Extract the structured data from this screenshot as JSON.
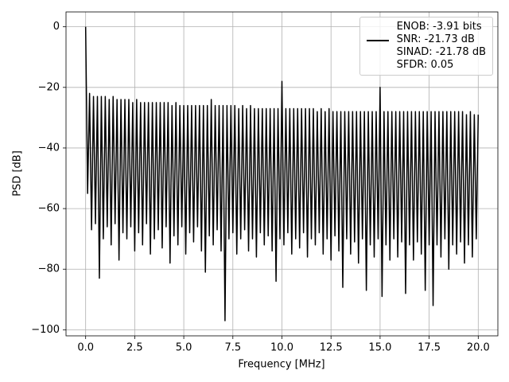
{
  "chart_data": {
    "type": "line",
    "xlabel": "Frequency [MHz]",
    "ylabel": "PSD [dB]",
    "x": [
      0,
      0.1,
      0.2,
      0.3,
      0.4,
      0.5,
      0.6,
      0.7,
      0.8,
      0.9,
      1,
      1.1,
      1.2,
      1.3,
      1.4,
      1.5,
      1.6,
      1.7,
      1.8,
      1.9,
      2,
      2.1,
      2.2,
      2.3,
      2.4,
      2.5,
      2.6,
      2.7,
      2.8,
      2.9,
      3,
      3.1,
      3.2,
      3.3,
      3.4,
      3.5,
      3.6,
      3.7,
      3.8,
      3.9,
      4,
      4.1,
      4.2,
      4.3,
      4.4,
      4.5,
      4.6,
      4.7,
      4.8,
      4.9,
      5,
      5.1,
      5.2,
      5.3,
      5.4,
      5.5,
      5.6,
      5.7,
      5.8,
      5.9,
      6,
      6.1,
      6.2,
      6.3,
      6.4,
      6.5,
      6.6,
      6.7,
      6.8,
      6.9,
      7,
      7.1,
      7.2,
      7.3,
      7.4,
      7.5,
      7.6,
      7.7,
      7.8,
      7.9,
      8,
      8.1,
      8.2,
      8.3,
      8.4,
      8.5,
      8.6,
      8.7,
      8.8,
      8.9,
      9,
      9.1,
      9.2,
      9.3,
      9.4,
      9.5,
      9.6,
      9.7,
      9.8,
      9.9,
      10,
      10.1,
      10.2,
      10.3,
      10.4,
      10.5,
      10.6,
      10.7,
      10.8,
      10.9,
      11,
      11.1,
      11.2,
      11.3,
      11.4,
      11.5,
      11.6,
      11.7,
      11.8,
      11.9,
      12,
      12.1,
      12.2,
      12.3,
      12.4,
      12.5,
      12.6,
      12.7,
      12.8,
      12.9,
      13,
      13.1,
      13.2,
      13.3,
      13.4,
      13.5,
      13.6,
      13.7,
      13.8,
      13.9,
      14,
      14.1,
      14.2,
      14.3,
      14.4,
      14.5,
      14.6,
      14.7,
      14.8,
      14.9,
      15,
      15.1,
      15.2,
      15.3,
      15.4,
      15.5,
      15.6,
      15.7,
      15.8,
      15.9,
      16,
      16.1,
      16.2,
      16.3,
      16.4,
      16.5,
      16.6,
      16.7,
      16.8,
      16.9,
      17,
      17.1,
      17.2,
      17.3,
      17.4,
      17.5,
      17.6,
      17.7,
      17.8,
      17.9,
      18,
      18.1,
      18.2,
      18.3,
      18.4,
      18.5,
      18.6,
      18.7,
      18.8,
      18.9,
      19,
      19.1,
      19.2,
      19.3,
      19.4,
      19.5,
      19.6,
      19.7,
      19.8,
      19.9,
      20
    ],
    "series": [
      {
        "name": "ENOB: -3.91 bits\nSNR: -21.73 dB\nSINAD: -21.78 dB\nSFDR: 0.05",
        "color": "#000000",
        "values": [
          0,
          -55,
          -22,
          -67,
          -23,
          -65,
          -23,
          -83,
          -23,
          -70,
          -23,
          -66,
          -24,
          -72,
          -23,
          -65,
          -24,
          -77,
          -24,
          -68,
          -24,
          -70,
          -24,
          -66,
          -25,
          -74,
          -24,
          -68,
          -25,
          -72,
          -25,
          -65,
          -25,
          -75,
          -25,
          -70,
          -25,
          -67,
          -25,
          -73,
          -25,
          -66,
          -25,
          -78,
          -26,
          -69,
          -25,
          -72,
          -26,
          -66,
          -26,
          -75,
          -26,
          -68,
          -26,
          -71,
          -26,
          -66,
          -26,
          -74,
          -26,
          -81,
          -26,
          -69,
          -24,
          -72,
          -26,
          -67,
          -26,
          -74,
          -26,
          -97,
          -26,
          -70,
          -26,
          -68,
          -26,
          -75,
          -27,
          -70,
          -26,
          -67,
          -27,
          -74,
          -26,
          -70,
          -27,
          -76,
          -27,
          -68,
          -27,
          -72,
          -27,
          -69,
          -27,
          -74,
          -27,
          -84,
          -27,
          -70,
          -18,
          -72,
          -27,
          -68,
          -27,
          -75,
          -27,
          -70,
          -27,
          -73,
          -27,
          -68,
          -27,
          -76,
          -27,
          -70,
          -27,
          -72,
          -28,
          -68,
          -27,
          -75,
          -28,
          -70,
          -27,
          -77,
          -28,
          -69,
          -28,
          -74,
          -28,
          -86,
          -28,
          -70,
          -28,
          -75,
          -28,
          -71,
          -28,
          -78,
          -28,
          -70,
          -28,
          -87,
          -28,
          -72,
          -28,
          -76,
          -28,
          -70,
          -20,
          -89,
          -28,
          -72,
          -28,
          -77,
          -28,
          -70,
          -28,
          -76,
          -28,
          -71,
          -28,
          -88,
          -28,
          -72,
          -28,
          -77,
          -28,
          -71,
          -28,
          -75,
          -28,
          -87,
          -28,
          -72,
          -28,
          -92,
          -28,
          -72,
          -28,
          -76,
          -28,
          -70,
          -28,
          -80,
          -28,
          -72,
          -28,
          -75,
          -28,
          -71,
          -28,
          -78,
          -29,
          -72,
          -28,
          -76,
          -29,
          -70,
          -29
        ]
      }
    ],
    "xlim": [
      -1,
      21
    ],
    "xticks": [
      {
        "value": 0,
        "label": "0.0"
      },
      2.5,
      {
        "value": 5,
        "label": "5.0"
      },
      7.5,
      {
        "value": 10,
        "label": "10.0"
      },
      12.5,
      {
        "value": 15,
        "label": "15.0"
      },
      17.5,
      {
        "value": 20,
        "label": "20.0"
      }
    ],
    "ylim": [
      -102,
      4.9
    ],
    "yticks": [
      0,
      {
        "value": -20,
        "label": "−20"
      },
      {
        "value": -40,
        "label": "−40"
      },
      {
        "value": -60,
        "label": "−60"
      },
      {
        "value": -80,
        "label": "−80"
      },
      {
        "value": -100,
        "label": "−100"
      }
    ],
    "grid": true,
    "legend": "upper right"
  }
}
